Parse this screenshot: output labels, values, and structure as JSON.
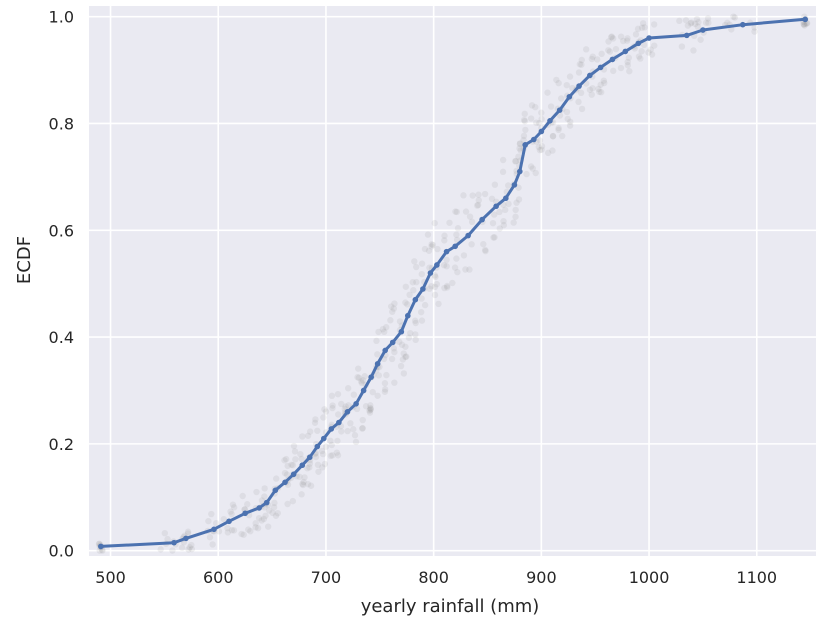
{
  "chart_data": {
    "type": "scatter",
    "xlabel": "yearly rainfall (mm)",
    "ylabel": "ECDF",
    "xlim": [
      480,
      1155
    ],
    "ylim": [
      -0.01,
      1.02
    ],
    "xticks": [
      500,
      600,
      700,
      800,
      900,
      1000,
      1100
    ],
    "yticks": [
      0.0,
      0.2,
      0.4,
      0.6,
      0.8,
      1.0
    ],
    "xtick_labels": [
      "500",
      "600",
      "700",
      "800",
      "900",
      "1000",
      "1100"
    ],
    "ytick_labels": [
      "0.0",
      "0.2",
      "0.4",
      "0.6",
      "0.8",
      "1.0"
    ],
    "grid": true,
    "background": "#eaeaf2",
    "colors": {
      "ecdf": "#4c72b0",
      "bootstrap": "#808080"
    },
    "series": [
      {
        "style": "line-with-markers",
        "x": [
          491,
          559,
          570,
          596,
          610,
          625,
          638,
          645,
          653,
          662,
          670,
          678,
          685,
          692,
          698,
          705,
          712,
          720,
          728,
          735,
          742,
          748,
          755,
          762,
          770,
          776,
          783,
          790,
          797,
          803,
          812,
          820,
          832,
          845,
          858,
          867,
          875,
          880,
          885,
          893,
          900,
          908,
          917,
          926,
          935,
          945,
          955,
          966,
          978,
          990,
          1000,
          1035,
          1050,
          1087,
          1145
        ],
        "y": [
          0.008,
          0.015,
          0.023,
          0.04,
          0.055,
          0.07,
          0.08,
          0.09,
          0.113,
          0.128,
          0.143,
          0.16,
          0.175,
          0.195,
          0.21,
          0.228,
          0.24,
          0.26,
          0.275,
          0.3,
          0.325,
          0.35,
          0.375,
          0.39,
          0.41,
          0.44,
          0.47,
          0.49,
          0.52,
          0.535,
          0.56,
          0.57,
          0.59,
          0.62,
          0.645,
          0.66,
          0.685,
          0.71,
          0.76,
          0.77,
          0.785,
          0.805,
          0.825,
          0.85,
          0.87,
          0.89,
          0.905,
          0.92,
          0.935,
          0.95,
          0.96,
          0.965,
          0.975,
          0.985,
          0.995
        ]
      }
    ]
  }
}
